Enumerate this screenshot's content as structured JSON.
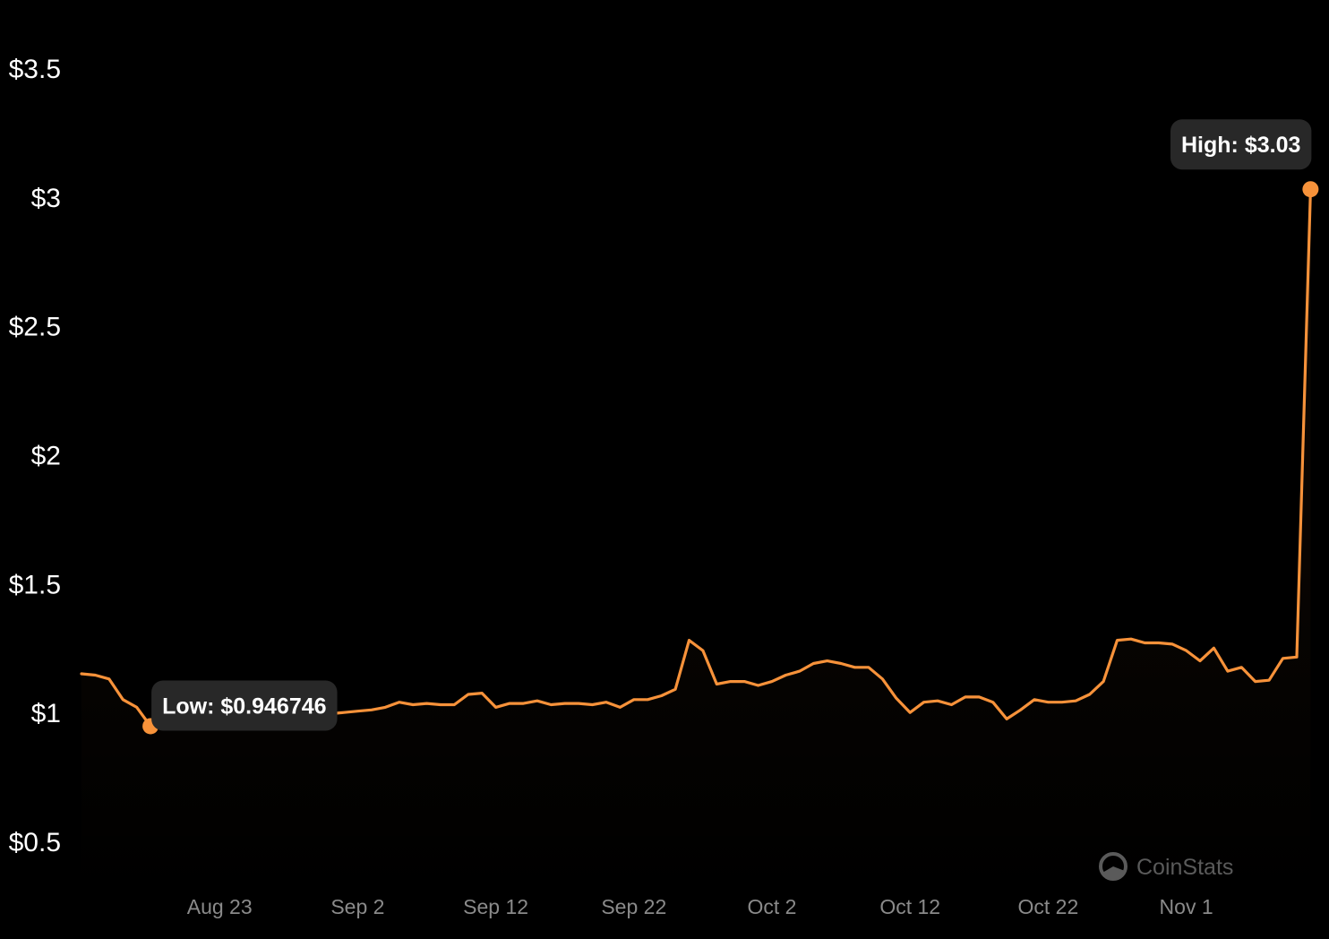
{
  "chart_data": {
    "type": "area",
    "ylim": [
      0.5,
      3.5
    ],
    "y_ticks": [
      {
        "value": 3.5,
        "label": "$3.5"
      },
      {
        "value": 3.0,
        "label": "$3"
      },
      {
        "value": 2.5,
        "label": "$2.5"
      },
      {
        "value": 2.0,
        "label": "$2"
      },
      {
        "value": 1.5,
        "label": "$1.5"
      },
      {
        "value": 1.0,
        "label": "$1"
      },
      {
        "value": 0.5,
        "label": "$0.5"
      }
    ],
    "x_ticks": [
      {
        "date": "2024-08-23",
        "label": "Aug 23"
      },
      {
        "date": "2024-09-02",
        "label": "Sep 2"
      },
      {
        "date": "2024-09-12",
        "label": "Sep 12"
      },
      {
        "date": "2024-09-22",
        "label": "Sep 22"
      },
      {
        "date": "2024-10-02",
        "label": "Oct 2"
      },
      {
        "date": "2024-10-12",
        "label": "Oct 12"
      },
      {
        "date": "2024-10-22",
        "label": "Oct 22"
      },
      {
        "date": "2024-11-01",
        "label": "Nov 1"
      }
    ],
    "x": [
      "2024-08-13",
      "2024-08-14",
      "2024-08-15",
      "2024-08-16",
      "2024-08-17",
      "2024-08-18",
      "2024-08-19",
      "2024-08-20",
      "2024-08-21",
      "2024-08-22",
      "2024-08-23",
      "2024-08-24",
      "2024-08-25",
      "2024-08-26",
      "2024-08-27",
      "2024-08-28",
      "2024-08-29",
      "2024-08-30",
      "2024-08-31",
      "2024-09-01",
      "2024-09-02",
      "2024-09-03",
      "2024-09-04",
      "2024-09-05",
      "2024-09-06",
      "2024-09-07",
      "2024-09-08",
      "2024-09-09",
      "2024-09-10",
      "2024-09-11",
      "2024-09-12",
      "2024-09-13",
      "2024-09-14",
      "2024-09-15",
      "2024-09-16",
      "2024-09-17",
      "2024-09-18",
      "2024-09-19",
      "2024-09-20",
      "2024-09-21",
      "2024-09-22",
      "2024-09-23",
      "2024-09-24",
      "2024-09-25",
      "2024-09-26",
      "2024-09-27",
      "2024-09-28",
      "2024-09-29",
      "2024-09-30",
      "2024-10-01",
      "2024-10-02",
      "2024-10-03",
      "2024-10-04",
      "2024-10-05",
      "2024-10-06",
      "2024-10-07",
      "2024-10-08",
      "2024-10-09",
      "2024-10-10",
      "2024-10-11",
      "2024-10-12",
      "2024-10-13",
      "2024-10-14",
      "2024-10-15",
      "2024-10-16",
      "2024-10-17",
      "2024-10-18",
      "2024-10-19",
      "2024-10-20",
      "2024-10-21",
      "2024-10-22",
      "2024-10-23",
      "2024-10-24",
      "2024-10-25",
      "2024-10-26",
      "2024-10-27",
      "2024-10-28",
      "2024-10-29",
      "2024-10-30",
      "2024-10-31",
      "2024-11-01",
      "2024-11-02",
      "2024-11-03",
      "2024-11-04",
      "2024-11-05",
      "2024-11-06",
      "2024-11-07",
      "2024-11-08",
      "2024-11-09",
      "2024-11-10"
    ],
    "series": [
      {
        "values": [
          1.15,
          1.145,
          1.13,
          1.05,
          1.02,
          0.946746,
          0.96,
          0.98,
          0.99,
          0.995,
          1.0,
          1.005,
          1.005,
          1.01,
          1.0,
          1.0,
          1.005,
          1.0,
          0.995,
          1.0,
          1.005,
          1.01,
          1.02,
          1.04,
          1.03,
          1.035,
          1.03,
          1.03,
          1.07,
          1.075,
          1.02,
          1.035,
          1.035,
          1.045,
          1.03,
          1.035,
          1.035,
          1.03,
          1.04,
          1.02,
          1.05,
          1.05,
          1.065,
          1.09,
          1.28,
          1.24,
          1.11,
          1.12,
          1.12,
          1.105,
          1.12,
          1.145,
          1.16,
          1.19,
          1.2,
          1.19,
          1.175,
          1.175,
          1.13,
          1.055,
          1.0,
          1.04,
          1.045,
          1.03,
          1.06,
          1.06,
          1.04,
          0.975,
          1.01,
          1.05,
          1.04,
          1.04,
          1.045,
          1.07,
          1.12,
          1.28,
          1.285,
          1.27,
          1.27,
          1.265,
          1.24,
          1.2,
          1.25,
          1.16,
          1.175,
          1.12,
          1.125,
          1.21,
          1.215,
          3.03
        ]
      }
    ],
    "annotations": {
      "low": {
        "label": "Low: $0.946746",
        "date": "2024-08-18",
        "value": 0.946746
      },
      "high": {
        "label": "High: $3.03",
        "date": "2024-11-10",
        "value": 3.03
      }
    },
    "grid": false,
    "line_color": "#F7923A",
    "tooltip_color": "#282828"
  },
  "watermark": {
    "icon": "coinstats-logo-icon",
    "text": "CoinStats"
  }
}
